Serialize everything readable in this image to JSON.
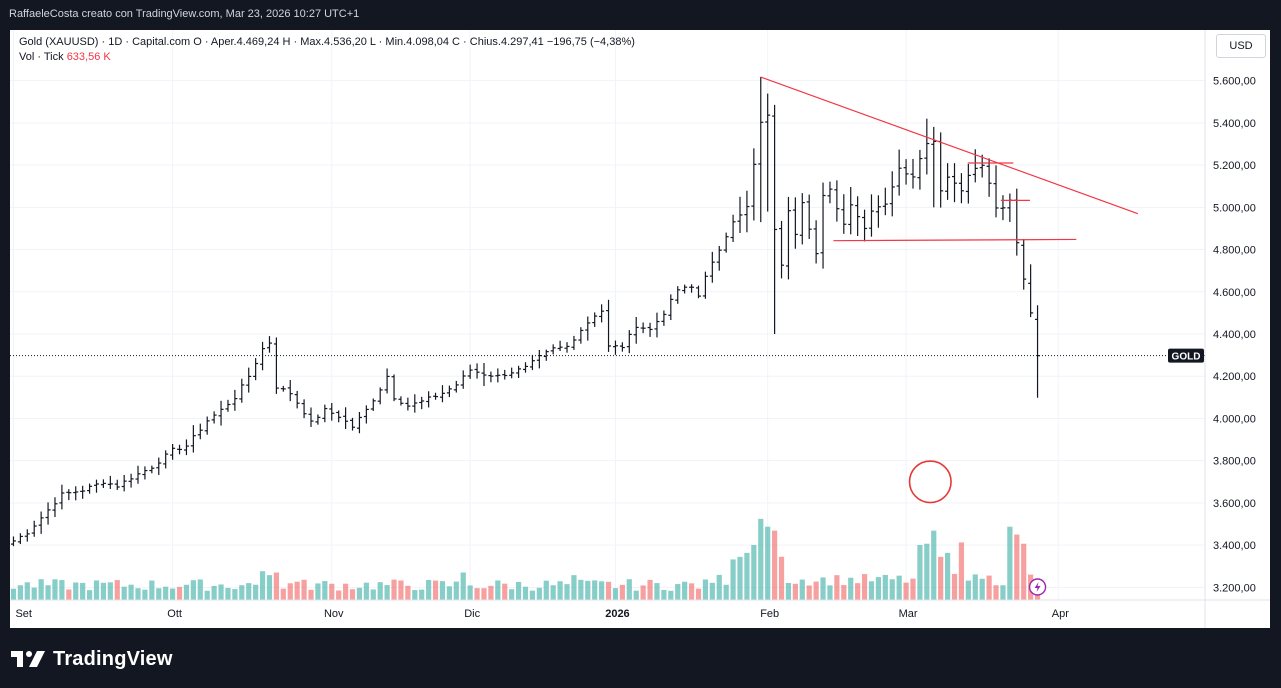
{
  "header": {
    "caption": "RaffaeleCosta creato con TradingView.com, Mar 23, 2026 10:27 UTC+1"
  },
  "legend": {
    "symbol_line": "Gold (XAUUSD) · 1D · Capital.com  O · Aper.4.469,24  H · Max.4.536,20  L · Min.4.098,04  C · Chius.4.297,41  −196,75 (−4,38%)",
    "vol_label": "Vol · Tick",
    "vol_value": "633,56 K"
  },
  "currency_button": "USD",
  "price_tag": "GOLD",
  "footer": {
    "brand": "TradingView"
  },
  "colors": {
    "up": "#26a69a",
    "down": "#ef5350",
    "trend": "#f23645",
    "bar": "#131722",
    "circle": "#e53935",
    "flash": "#9c27b0"
  },
  "chart_data": {
    "type": "ohlc",
    "title": "Gold (XAUUSD) · 1D · Capital.com",
    "x": "trading day index (0 = first visible bar, early September 2025)",
    "ylabel": "USD",
    "ylim": [
      3140,
      5840
    ],
    "y_ticks": [
      "3.200,00",
      "3.400,00",
      "3.600,00",
      "3.800,00",
      "4.000,00",
      "4.200,00",
      "4.400,00",
      "4.600,00",
      "4.800,00",
      "5.000,00",
      "5.200,00",
      "5.400,00",
      "5.600,00"
    ],
    "y_tick_values": [
      3200,
      3400,
      3600,
      3800,
      4000,
      4200,
      4400,
      4600,
      4800,
      5000,
      5200,
      5400,
      5600
    ],
    "x_ticks": [
      {
        "label": "Set",
        "index": 0,
        "bold": false
      },
      {
        "label": "Ott",
        "index": 23,
        "bold": false
      },
      {
        "label": "Nov",
        "index": 46,
        "bold": false
      },
      {
        "label": "Dic",
        "index": 66,
        "bold": false
      },
      {
        "label": "2026",
        "index": 87,
        "bold": true
      },
      {
        "label": "Feb",
        "index": 109,
        "bold": false
      },
      {
        "label": "Mar",
        "index": 129,
        "bold": false
      },
      {
        "label": "Apr",
        "index": 151,
        "bold": false
      }
    ],
    "x_range": [
      -0.5,
      172.2
    ],
    "close_line": 4297.41,
    "close_tag_label": "GOLD",
    "anchors": [
      [
        0,
        3420,
        "u"
      ],
      [
        2,
        3460,
        "u"
      ],
      [
        4,
        3530,
        "u"
      ],
      [
        7,
        3640,
        "u"
      ],
      [
        10,
        3660,
        "u"
      ],
      [
        13,
        3700,
        "u"
      ],
      [
        15,
        3680,
        "d"
      ],
      [
        17,
        3720,
        "u"
      ],
      [
        20,
        3770,
        "u"
      ],
      [
        23,
        3850,
        "u"
      ],
      [
        25,
        3870,
        "u"
      ],
      [
        28,
        3990,
        "u"
      ],
      [
        30,
        4040,
        "u"
      ],
      [
        32,
        4100,
        "u"
      ],
      [
        34,
        4200,
        "u"
      ],
      [
        36,
        4330,
        "u"
      ],
      [
        37,
        4360,
        "u"
      ],
      [
        38,
        4150,
        "d"
      ],
      [
        40,
        4120,
        "d"
      ],
      [
        42,
        4030,
        "d"
      ],
      [
        43,
        3980,
        "d"
      ],
      [
        45,
        4040,
        "u"
      ],
      [
        47,
        4010,
        "d"
      ],
      [
        49,
        3960,
        "d"
      ],
      [
        51,
        4040,
        "u"
      ],
      [
        53,
        4140,
        "u"
      ],
      [
        54,
        4200,
        "u"
      ],
      [
        55,
        4100,
        "d"
      ],
      [
        57,
        4060,
        "d"
      ],
      [
        59,
        4080,
        "u"
      ],
      [
        62,
        4120,
        "u"
      ],
      [
        64,
        4160,
        "u"
      ],
      [
        66,
        4230,
        "u"
      ],
      [
        68,
        4210,
        "d"
      ],
      [
        70,
        4200,
        "u"
      ],
      [
        72,
        4220,
        "u"
      ],
      [
        74,
        4240,
        "u"
      ],
      [
        76,
        4290,
        "u"
      ],
      [
        78,
        4330,
        "u"
      ],
      [
        80,
        4340,
        "u"
      ],
      [
        82,
        4420,
        "u"
      ],
      [
        84,
        4490,
        "u"
      ],
      [
        85,
        4510,
        "u"
      ],
      [
        86,
        4340,
        "d"
      ],
      [
        88,
        4340,
        "d"
      ],
      [
        90,
        4440,
        "u"
      ],
      [
        92,
        4420,
        "d"
      ],
      [
        94,
        4500,
        "u"
      ],
      [
        96,
        4610,
        "u"
      ],
      [
        98,
        4620,
        "u"
      ],
      [
        99,
        4580,
        "d"
      ],
      [
        100,
        4680,
        "u"
      ],
      [
        102,
        4790,
        "u"
      ],
      [
        104,
        4940,
        "u"
      ],
      [
        106,
        5000,
        "u"
      ],
      [
        107,
        5200,
        "u"
      ],
      [
        108,
        5400,
        "u"
      ],
      [
        109,
        5430,
        "u"
      ],
      [
        110,
        4900,
        "d"
      ],
      [
        111,
        4720,
        "d"
      ],
      [
        112,
        4990,
        "u"
      ],
      [
        113,
        4880,
        "d"
      ],
      [
        114,
        5030,
        "u"
      ],
      [
        116,
        4780,
        "d"
      ],
      [
        117,
        5050,
        "u"
      ],
      [
        118,
        5080,
        "u"
      ],
      [
        120,
        4920,
        "d"
      ],
      [
        121,
        5020,
        "u"
      ],
      [
        123,
        4900,
        "d"
      ],
      [
        124,
        4990,
        "u"
      ],
      [
        126,
        5020,
        "u"
      ],
      [
        128,
        5180,
        "u"
      ],
      [
        130,
        5150,
        "d"
      ],
      [
        131,
        5240,
        "u"
      ],
      [
        132,
        5300,
        "u"
      ],
      [
        133,
        5320,
        "u"
      ],
      [
        134,
        5080,
        "d"
      ],
      [
        135,
        5150,
        "u"
      ],
      [
        137,
        5080,
        "d"
      ],
      [
        138,
        5160,
        "u"
      ],
      [
        140,
        5200,
        "u"
      ],
      [
        141,
        5110,
        "d"
      ],
      [
        142,
        5000,
        "d"
      ],
      [
        143,
        4990,
        "d"
      ],
      [
        144,
        5030,
        "u"
      ],
      [
        145,
        4830,
        "d"
      ],
      [
        146,
        4660,
        "d"
      ],
      [
        147,
        4500,
        "d"
      ],
      [
        148,
        4297,
        "d"
      ]
    ],
    "final_bars": [
      {
        "i": 146,
        "o": 4820,
        "h": 4850,
        "l": 4610,
        "c": 4660
      },
      {
        "i": 147,
        "o": 4640,
        "h": 4730,
        "l": 4480,
        "c": 4500
      },
      {
        "i": 148,
        "o": 4469.24,
        "h": 4536.2,
        "l": 4098.04,
        "c": 4297.41
      }
    ],
    "volume": {
      "label": "Vol · Tick",
      "last": "633,56 K",
      "scale_max": 1000,
      "base_price": 3140,
      "full_height_price_units": 620,
      "spikes": [
        [
          36,
          220
        ],
        [
          37,
          190
        ],
        [
          38,
          210
        ],
        [
          41,
          140
        ],
        [
          65,
          210
        ],
        [
          81,
          190
        ],
        [
          104,
          310
        ],
        [
          105,
          330
        ],
        [
          106,
          360
        ],
        [
          107,
          420
        ],
        [
          108,
          620
        ],
        [
          109,
          560
        ],
        [
          110,
          530
        ],
        [
          111,
          330
        ],
        [
          131,
          420
        ],
        [
          132,
          430
        ],
        [
          133,
          530
        ],
        [
          134,
          330
        ],
        [
          135,
          360
        ],
        [
          137,
          440
        ],
        [
          144,
          560
        ],
        [
          145,
          500
        ],
        [
          146,
          430
        ]
      ]
    },
    "annotations": [
      {
        "type": "trendline",
        "from": [
          108.0,
          5617
        ],
        "to": [
          162.5,
          4970
        ]
      },
      {
        "type": "hline",
        "from": [
          118.5,
          4842
        ],
        "to": [
          153.6,
          4848
        ]
      },
      {
        "type": "hline",
        "from": [
          137.9,
          5210
        ],
        "to": [
          144.5,
          5210
        ]
      },
      {
        "type": "hline",
        "from": [
          142.7,
          5033
        ],
        "to": [
          146.9,
          5033
        ]
      },
      {
        "type": "circle",
        "center": [
          132.5,
          3700
        ],
        "radius_days": 3.0
      }
    ]
  }
}
